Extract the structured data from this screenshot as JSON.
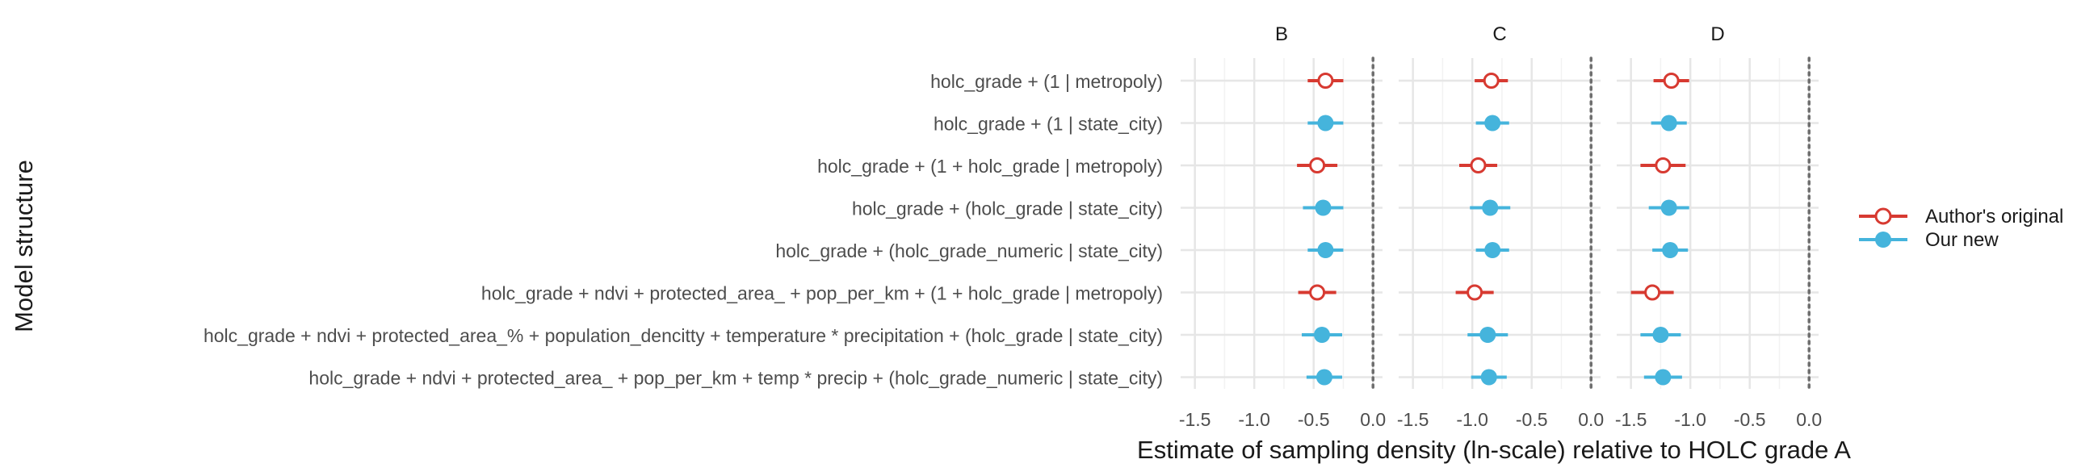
{
  "chart_data": {
    "type": "scatter",
    "subtype": "forest-plot",
    "xlabel": "Estimate of sampling density (ln-scale) relative to HOLC grade A",
    "ylabel": "Model structure",
    "xlim": [
      -1.62,
      0.08
    ],
    "xticks": [
      -1.5,
      -1.0,
      -0.5,
      0.0
    ],
    "xtick_labels": [
      "-1.5",
      "-1.0",
      "-0.5",
      "0.0"
    ],
    "reference_line": 0.0,
    "grid": true,
    "legend_position": "right",
    "categories": [
      "holc_grade + (1 | metropoly)",
      "holc_grade + (1 | state_city)",
      "holc_grade + (1 + holc_grade | metropoly)",
      "holc_grade + (holc_grade | state_city)",
      "holc_grade + (holc_grade_numeric | state_city)",
      "holc_grade + ndvi + protected_area_ + pop_per_km + (1 + holc_grade | metropoly)",
      "holc_grade + ndvi + protected_area_% + population_dencitty + temperature * precipitation + (holc_grade | state_city)",
      "holc_grade + ndvi + protected_area_ + pop_per_km + temp * precip + (holc_grade_numeric | state_city)"
    ],
    "series_styles": [
      {
        "name": "Author's original",
        "color": "#D73A31",
        "marker": "open-circle"
      },
      {
        "name": "Our new",
        "color": "#45B4DC",
        "marker": "filled-circle"
      }
    ],
    "panels": [
      {
        "title": "B",
        "points": [
          {
            "row": 0,
            "series": 0,
            "estimate": -0.4,
            "lower": -0.55,
            "upper": -0.25
          },
          {
            "row": 1,
            "series": 1,
            "estimate": -0.4,
            "lower": -0.55,
            "upper": -0.25
          },
          {
            "row": 2,
            "series": 0,
            "estimate": -0.47,
            "lower": -0.64,
            "upper": -0.3
          },
          {
            "row": 3,
            "series": 1,
            "estimate": -0.42,
            "lower": -0.59,
            "upper": -0.25
          },
          {
            "row": 4,
            "series": 1,
            "estimate": -0.4,
            "lower": -0.55,
            "upper": -0.25
          },
          {
            "row": 5,
            "series": 0,
            "estimate": -0.47,
            "lower": -0.63,
            "upper": -0.31
          },
          {
            "row": 6,
            "series": 1,
            "estimate": -0.43,
            "lower": -0.6,
            "upper": -0.26
          },
          {
            "row": 7,
            "series": 1,
            "estimate": -0.41,
            "lower": -0.56,
            "upper": -0.26
          }
        ]
      },
      {
        "title": "C",
        "points": [
          {
            "row": 0,
            "series": 0,
            "estimate": -0.84,
            "lower": -0.98,
            "upper": -0.7
          },
          {
            "row": 1,
            "series": 1,
            "estimate": -0.83,
            "lower": -0.97,
            "upper": -0.69
          },
          {
            "row": 2,
            "series": 0,
            "estimate": -0.95,
            "lower": -1.11,
            "upper": -0.79
          },
          {
            "row": 3,
            "series": 1,
            "estimate": -0.85,
            "lower": -1.02,
            "upper": -0.68
          },
          {
            "row": 4,
            "series": 1,
            "estimate": -0.83,
            "lower": -0.97,
            "upper": -0.69
          },
          {
            "row": 5,
            "series": 0,
            "estimate": -0.98,
            "lower": -1.14,
            "upper": -0.82
          },
          {
            "row": 6,
            "series": 1,
            "estimate": -0.87,
            "lower": -1.04,
            "upper": -0.7
          },
          {
            "row": 7,
            "series": 1,
            "estimate": -0.86,
            "lower": -1.01,
            "upper": -0.71
          }
        ]
      },
      {
        "title": "D",
        "points": [
          {
            "row": 0,
            "series": 0,
            "estimate": -1.16,
            "lower": -1.31,
            "upper": -1.01
          },
          {
            "row": 1,
            "series": 1,
            "estimate": -1.18,
            "lower": -1.33,
            "upper": -1.03
          },
          {
            "row": 2,
            "series": 0,
            "estimate": -1.23,
            "lower": -1.42,
            "upper": -1.04
          },
          {
            "row": 3,
            "series": 1,
            "estimate": -1.18,
            "lower": -1.35,
            "upper": -1.01
          },
          {
            "row": 4,
            "series": 1,
            "estimate": -1.17,
            "lower": -1.32,
            "upper": -1.02
          },
          {
            "row": 5,
            "series": 0,
            "estimate": -1.32,
            "lower": -1.5,
            "upper": -1.14
          },
          {
            "row": 6,
            "series": 1,
            "estimate": -1.25,
            "lower": -1.42,
            "upper": -1.08
          },
          {
            "row": 7,
            "series": 1,
            "estimate": -1.23,
            "lower": -1.39,
            "upper": -1.07
          }
        ]
      }
    ]
  }
}
